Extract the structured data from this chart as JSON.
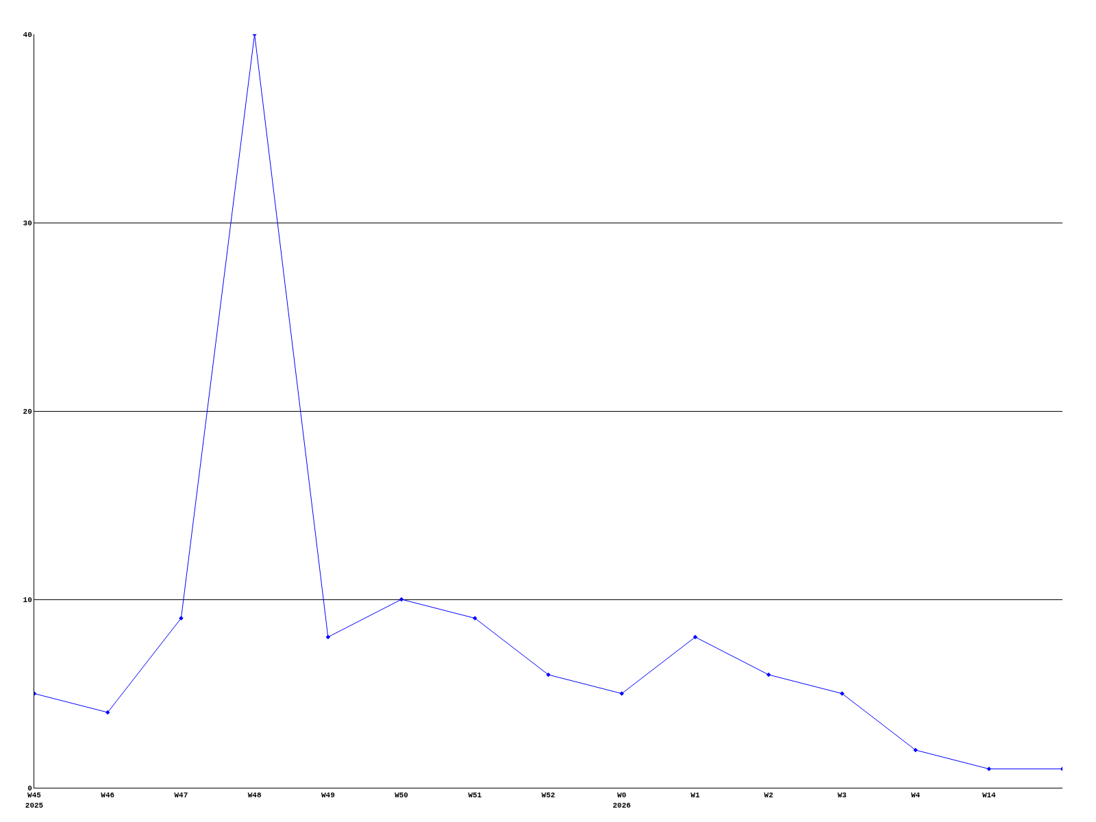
{
  "chart_data": {
    "type": "line",
    "categories": [
      "W45\n2025",
      "W46",
      "W47",
      "W48",
      "W49",
      "W50",
      "W51",
      "W52",
      "W0\n2026",
      "W1",
      "W2",
      "W3",
      "W4",
      "W14",
      null
    ],
    "series": [
      {
        "color": "#0000ff",
        "values": [
          5,
          4,
          9,
          40,
          8,
          10,
          9,
          6,
          5,
          8,
          6,
          5,
          2,
          1,
          1
        ]
      }
    ],
    "ylim": [
      0,
      40
    ],
    "yticks": [
      0,
      10,
      20,
      30,
      40
    ],
    "grid": "y",
    "marker": "diamond",
    "line_style": "solid"
  }
}
